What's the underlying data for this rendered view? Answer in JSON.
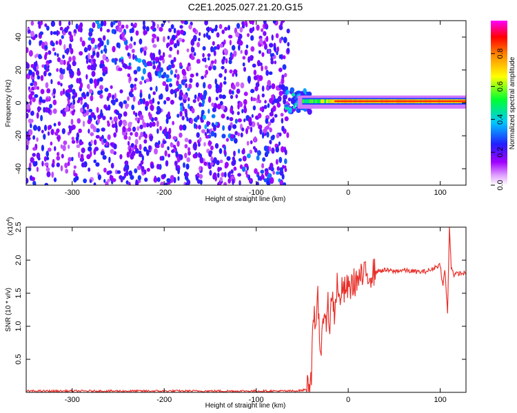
{
  "figure": {
    "title": "C2E1.2025.027.21.20.G15"
  },
  "chart_data": [
    {
      "type": "heatmap",
      "xlabel": "Height of straight line (km)",
      "ylabel": "Frequency (Hz)",
      "xlim": [
        -350,
        128
      ],
      "ylim": [
        -50,
        50
      ],
      "xticks": [
        -300,
        -200,
        -100,
        0,
        100
      ],
      "yticks": [
        -40,
        -20,
        0,
        20,
        40
      ],
      "colorbar": {
        "label": "Normalized spectral amplitude",
        "range": [
          0.0,
          1.0
        ],
        "ticks": [
          0.0,
          0.2,
          0.4,
          0.6,
          0.8
        ],
        "colormap": [
          "#ffffff",
          "#a000ff",
          "#0000ff",
          "#00c8ff",
          "#00ff00",
          "#ffff00",
          "#ff8000",
          "#ff0000",
          "#ff00ff"
        ]
      },
      "description_regions": [
        {
          "x_range": [
            -350,
            -65
          ],
          "freq_range": [
            -50,
            50
          ],
          "amplitude": "low, scattered (0.05-0.3)"
        },
        {
          "x_range": [
            -65,
            128
          ],
          "freq_range": [
            -2,
            4
          ],
          "amplitude": "narrow band near 1 Hz, peak ~0.9"
        }
      ]
    },
    {
      "type": "line",
      "xlabel": "Height of straight line (km)",
      "ylabel": "SNR (10 * v/v)",
      "y_multiplier": "(x10^4)",
      "xlim": [
        -350,
        128
      ],
      "ylim": [
        0,
        2.5
      ],
      "xticks": [
        -300,
        -200,
        -100,
        0,
        100
      ],
      "yticks": [
        0.5,
        1.0,
        1.5,
        2.0,
        2.5
      ],
      "series": [
        {
          "color": "#e8302a",
          "x": [
            -350,
            -300,
            -250,
            -200,
            -150,
            -100,
            -60,
            -50,
            -45,
            -40,
            -38,
            -35,
            -33,
            -30,
            -28,
            -25,
            -22,
            -20,
            -18,
            -15,
            -12,
            -10,
            -8,
            -5,
            -2,
            0,
            5,
            10,
            20,
            30,
            40,
            50,
            60,
            70,
            80,
            90,
            95,
            100,
            103,
            105,
            108,
            110,
            112,
            115,
            120,
            128
          ],
          "values": [
            0.02,
            0.02,
            0.02,
            0.02,
            0.02,
            0.02,
            0.02,
            0.03,
            0.05,
            0.3,
            1.3,
            0.8,
            1.45,
            0.5,
            1.2,
            0.9,
            1.5,
            0.8,
            1.55,
            1.2,
            1.65,
            1.35,
            1.55,
            1.5,
            1.6,
            1.55,
            1.65,
            1.7,
            1.78,
            1.83,
            1.85,
            1.83,
            1.85,
            1.83,
            1.82,
            1.85,
            1.9,
            1.93,
            1.6,
            1.87,
            1.2,
            2.5,
            1.9,
            1.78,
            1.8,
            1.8
          ]
        }
      ]
    }
  ],
  "labels": {
    "y_multiplier_prefix": "(x10",
    "y_multiplier_exp": "4",
    "y_multiplier_suffix": ")"
  }
}
